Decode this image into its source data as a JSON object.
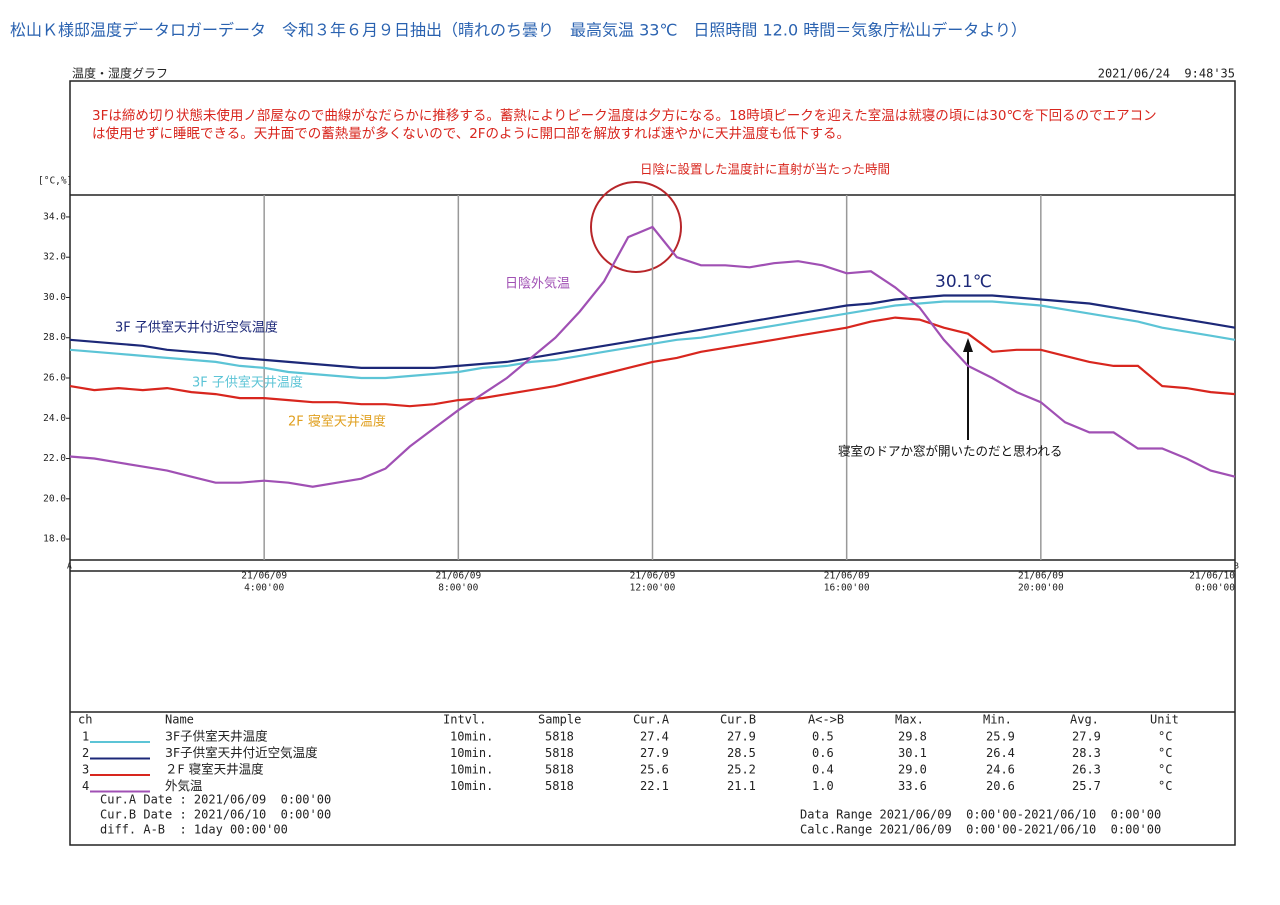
{
  "header": {
    "title": "松山Ｋ様邸温度データロガーデータ　令和３年６月９日抽出（晴れのち曇り　最高気温 33℃　日照時間 12.0 時間＝気象庁松山データより）",
    "graph_title": "温度・湿度グラフ",
    "timestamp": "2021/06/24  9:48'35"
  },
  "note": [
    "3Fは締め切り状態未使用ノ部屋なので曲線がなだらかに推移する。蓄熱によりピーク温度は夕方になる。18時頃ピークを迎えた室温は就寝の頃には30℃を下回るのでエアコン",
    "は使用せずに睡眠できる。天井面での蓄熱量が多くないので、2Fのように開口部を解放すれば速やかに天井温度も低下する。"
  ],
  "chart_data": {
    "type": "line",
    "y_unit": "[°C,%]",
    "grid": true,
    "xlim": [
      0,
      24
    ],
    "ylim": [
      16.96,
      35.09
    ],
    "yticks": [
      {
        "value": 18,
        "label": "18.0"
      },
      {
        "value": 20,
        "label": "20.0"
      },
      {
        "value": 22,
        "label": "22.0"
      },
      {
        "value": 24,
        "label": "24.0"
      },
      {
        "value": 26,
        "label": "26.0"
      },
      {
        "value": 28,
        "label": "28.0"
      },
      {
        "value": 30,
        "label": "30.0"
      },
      {
        "value": 32,
        "label": "32.0"
      },
      {
        "value": 34,
        "label": "34.0"
      }
    ],
    "xticks": [
      {
        "value": 4,
        "label": [
          "21/06/09",
          "4:00'00"
        ]
      },
      {
        "value": 8,
        "label": [
          "21/06/09",
          "8:00'00"
        ]
      },
      {
        "value": 12,
        "label": [
          "21/06/09",
          "12:00'00"
        ]
      },
      {
        "value": 16,
        "label": [
          "21/06/09",
          "16:00'00"
        ]
      },
      {
        "value": 20,
        "label": [
          "21/06/09",
          "20:00'00"
        ]
      },
      {
        "value": 24,
        "label": [
          "21/06/10",
          "0:00'00"
        ]
      }
    ],
    "cursors": [
      "A",
      "B"
    ],
    "x": [
      0,
      0.5,
      1,
      1.5,
      2,
      2.5,
      3,
      3.5,
      4,
      4.5,
      5,
      5.5,
      6,
      6.5,
      7,
      7.5,
      8,
      8.5,
      9,
      9.5,
      10,
      10.5,
      11,
      11.5,
      12,
      12.5,
      13,
      13.5,
      14,
      14.5,
      15,
      15.5,
      16,
      16.5,
      17,
      17.5,
      18,
      18.5,
      19,
      19.5,
      20,
      20.5,
      21,
      21.5,
      22,
      22.5,
      23,
      23.5,
      24
    ],
    "series": [
      {
        "name": "3F子供室天井温度",
        "color": "#5cc4d6",
        "values": [
          27.4,
          27.3,
          27.2,
          27.1,
          27.0,
          26.9,
          26.8,
          26.6,
          26.5,
          26.3,
          26.2,
          26.1,
          26.0,
          26.0,
          26.1,
          26.2,
          26.3,
          26.5,
          26.6,
          26.8,
          26.9,
          27.1,
          27.3,
          27.5,
          27.7,
          27.9,
          28.0,
          28.2,
          28.4,
          28.6,
          28.8,
          29.0,
          29.2,
          29.4,
          29.6,
          29.7,
          29.8,
          29.8,
          29.8,
          29.7,
          29.6,
          29.4,
          29.2,
          29.0,
          28.8,
          28.5,
          28.3,
          28.1,
          27.9
        ]
      },
      {
        "name": "3F子供室天井付近空気温度",
        "color": "#1c2878",
        "values": [
          27.9,
          27.8,
          27.7,
          27.6,
          27.4,
          27.3,
          27.2,
          27.0,
          26.9,
          26.8,
          26.7,
          26.6,
          26.5,
          26.5,
          26.5,
          26.5,
          26.6,
          26.7,
          26.8,
          27.0,
          27.2,
          27.4,
          27.6,
          27.8,
          28.0,
          28.2,
          28.4,
          28.6,
          28.8,
          29.0,
          29.2,
          29.4,
          29.6,
          29.7,
          29.9,
          30.0,
          30.1,
          30.1,
          30.1,
          30.0,
          29.9,
          29.8,
          29.7,
          29.5,
          29.3,
          29.1,
          28.9,
          28.7,
          28.5
        ]
      },
      {
        "name": "２F 寝室天井温度",
        "color": "#d8261e",
        "values": [
          25.6,
          25.4,
          25.5,
          25.4,
          25.5,
          25.3,
          25.2,
          25.0,
          25.0,
          24.9,
          24.8,
          24.8,
          24.7,
          24.7,
          24.6,
          24.7,
          24.9,
          25.0,
          25.2,
          25.4,
          25.6,
          25.9,
          26.2,
          26.5,
          26.8,
          27.0,
          27.3,
          27.5,
          27.7,
          27.9,
          28.1,
          28.3,
          28.5,
          28.8,
          29.0,
          28.9,
          28.5,
          28.2,
          27.3,
          27.4,
          27.4,
          27.1,
          26.8,
          26.6,
          26.6,
          25.6,
          25.5,
          25.3,
          25.2
        ]
      },
      {
        "name": "外気温",
        "color": "#a050b4",
        "values": [
          22.1,
          22.0,
          21.8,
          21.6,
          21.4,
          21.1,
          20.8,
          20.8,
          20.9,
          20.8,
          20.6,
          20.8,
          21.0,
          21.5,
          22.6,
          23.5,
          24.4,
          25.2,
          26.0,
          27.0,
          28.0,
          29.3,
          30.8,
          33.0,
          33.5,
          32.0,
          31.6,
          31.6,
          31.5,
          31.7,
          31.8,
          31.6,
          31.2,
          31.3,
          30.5,
          29.5,
          27.9,
          26.6,
          26.0,
          25.3,
          24.8,
          23.8,
          23.3,
          23.3,
          22.5,
          22.5,
          22.0,
          21.4,
          21.1
        ]
      }
    ],
    "annotations": [
      {
        "text": "3F 子供室天井付近空気温度",
        "color": "#1c2878"
      },
      {
        "text": "3F 子供室天井温度",
        "color": "#5cc4d6"
      },
      {
        "text": "2F 寝室天井温度",
        "color": "#e0a020"
      },
      {
        "text": "日陰外気温",
        "color": "#a050b4"
      },
      {
        "text": "30.1℃",
        "color": "#1c2878"
      },
      {
        "text": "日陰に設置した温度計に直射が当たった時間",
        "color": "#d8261e"
      },
      {
        "text": "寝室のドアか窓が開いたのだと思われる",
        "color": "#111111"
      }
    ]
  },
  "table": {
    "columns": [
      "ch",
      "Name",
      "Intvl.",
      "Sample",
      "Cur.A",
      "Cur.B",
      "A<->B",
      "Max.",
      "Min.",
      "Avg.",
      "Unit"
    ],
    "rows": [
      [
        "1",
        "10min.",
        "5818",
        "27.4",
        "27.9",
        "0.5",
        "29.8",
        "25.9",
        "27.9",
        "°C"
      ],
      [
        "2",
        "10min.",
        "5818",
        "27.9",
        "28.5",
        "0.6",
        "30.1",
        "26.4",
        "28.3",
        "°C"
      ],
      [
        "3",
        "10min.",
        "5818",
        "25.6",
        "25.2",
        "0.4",
        "29.0",
        "24.6",
        "26.3",
        "°C"
      ],
      [
        "4",
        "10min.",
        "5818",
        "22.1",
        "21.1",
        "1.0",
        "33.6",
        "20.6",
        "25.7",
        "°C"
      ]
    ]
  },
  "footer": {
    "cur_a": "Cur.A Date : 2021/06/09  0:00'00",
    "cur_b": "Cur.B Date : 2021/06/10  0:00'00",
    "diff": "diff. A-B  : 1day 00:00'00",
    "data_range": "Data Range 2021/06/09  0:00'00-2021/06/10  0:00'00",
    "calc_range": "Calc.Range 2021/06/09  0:00'00-2021/06/10  0:00'00"
  }
}
